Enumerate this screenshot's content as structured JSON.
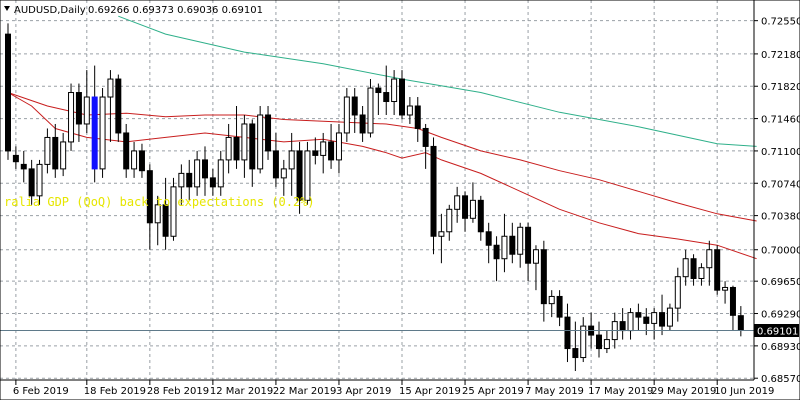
{
  "chart_data": {
    "type": "candlestick",
    "symbol_timeframe": "AUDUSD,Daily",
    "ohlc_header": "0.69266 0.69373 0.69036 0.69101",
    "current_price_label": "0.69101",
    "current_price": 0.69101,
    "annotation": "ralia GDP (QoQ) back to expectations (0.2%)",
    "ylim": [
      0.6855,
      0.7278
    ],
    "y_ticks": [
      "0.72550",
      "0.72180",
      "0.71820",
      "0.71460",
      "0.71100",
      "0.70740",
      "0.70380",
      "0.70000",
      "0.69650",
      "0.69290",
      "0.68930",
      "0.68570"
    ],
    "x_tick_labels": [
      {
        "label": "6 Feb 2019",
        "bar": 1
      },
      {
        "label": "18 Feb 2019",
        "bar": 10
      },
      {
        "label": "28 Feb 2019",
        "bar": 18
      },
      {
        "label": "12 Mar 2019",
        "bar": 26
      },
      {
        "label": "22 Mar 2019",
        "bar": 34
      },
      {
        "label": "3 Apr 2019",
        "bar": 42
      },
      {
        "label": "15 Apr 2019",
        "bar": 50
      },
      {
        "label": "25 Apr 2019",
        "bar": 58
      },
      {
        "label": "7 May 2019",
        "bar": 66
      },
      {
        "label": "17 May 2019",
        "bar": 74
      },
      {
        "label": "29 May 2019",
        "bar": 82
      },
      {
        "label": "10 Jun 2019",
        "bar": 90
      }
    ],
    "candles": [
      [
        0.724,
        0.7252,
        0.71,
        0.711
      ],
      [
        0.7105,
        0.7115,
        0.709,
        0.7098
      ],
      [
        0.7095,
        0.711,
        0.7075,
        0.709
      ],
      [
        0.709,
        0.71,
        0.705,
        0.706
      ],
      [
        0.706,
        0.71,
        0.705,
        0.7095
      ],
      [
        0.7095,
        0.7135,
        0.7085,
        0.7125
      ],
      [
        0.7125,
        0.714,
        0.708,
        0.709
      ],
      [
        0.709,
        0.713,
        0.7082,
        0.712
      ],
      [
        0.712,
        0.7185,
        0.711,
        0.7175
      ],
      [
        0.7175,
        0.7185,
        0.712,
        0.714
      ],
      [
        0.714,
        0.72,
        0.713,
        0.717
      ],
      [
        0.717,
        0.7205,
        0.7075,
        0.709
      ],
      [
        0.709,
        0.718,
        0.708,
        0.717
      ],
      [
        0.717,
        0.72,
        0.712,
        0.719
      ],
      [
        0.719,
        0.7195,
        0.712,
        0.713
      ],
      [
        0.713,
        0.714,
        0.708,
        0.709
      ],
      [
        0.709,
        0.712,
        0.708,
        0.711
      ],
      [
        0.711,
        0.7118,
        0.708,
        0.7088
      ],
      [
        0.7088,
        0.7095,
        0.7,
        0.703
      ],
      [
        0.703,
        0.706,
        0.7005,
        0.705
      ],
      [
        0.705,
        0.708,
        0.7,
        0.7015
      ],
      [
        0.7015,
        0.708,
        0.701,
        0.707
      ],
      [
        0.707,
        0.7095,
        0.705,
        0.7085
      ],
      [
        0.7085,
        0.71,
        0.7055,
        0.707
      ],
      [
        0.707,
        0.711,
        0.706,
        0.71
      ],
      [
        0.71,
        0.7115,
        0.706,
        0.708
      ],
      [
        0.708,
        0.709,
        0.706,
        0.707
      ],
      [
        0.707,
        0.711,
        0.706,
        0.71
      ],
      [
        0.71,
        0.714,
        0.7085,
        0.7125
      ],
      [
        0.7125,
        0.716,
        0.709,
        0.71
      ],
      [
        0.71,
        0.715,
        0.708,
        0.714
      ],
      [
        0.714,
        0.7145,
        0.707,
        0.709
      ],
      [
        0.709,
        0.716,
        0.7085,
        0.715
      ],
      [
        0.715,
        0.716,
        0.71,
        0.711
      ],
      [
        0.711,
        0.713,
        0.707,
        0.708
      ],
      [
        0.708,
        0.71,
        0.706,
        0.709
      ],
      [
        0.709,
        0.713,
        0.706,
        0.711
      ],
      [
        0.711,
        0.712,
        0.704,
        0.7055
      ],
      [
        0.7055,
        0.712,
        0.705,
        0.711
      ],
      [
        0.711,
        0.7125,
        0.7095,
        0.7105
      ],
      [
        0.7105,
        0.713,
        0.7085,
        0.712
      ],
      [
        0.712,
        0.714,
        0.709,
        0.71
      ],
      [
        0.71,
        0.714,
        0.7085,
        0.713
      ],
      [
        0.713,
        0.718,
        0.712,
        0.717
      ],
      [
        0.717,
        0.718,
        0.713,
        0.715
      ],
      [
        0.715,
        0.716,
        0.712,
        0.713
      ],
      [
        0.713,
        0.719,
        0.7125,
        0.718
      ],
      [
        0.718,
        0.7185,
        0.715,
        0.7175
      ],
      [
        0.7175,
        0.7205,
        0.715,
        0.7165
      ],
      [
        0.7165,
        0.72,
        0.715,
        0.719
      ],
      [
        0.719,
        0.72,
        0.7145,
        0.715
      ],
      [
        0.715,
        0.717,
        0.714,
        0.716
      ],
      [
        0.716,
        0.717,
        0.712,
        0.7135
      ],
      [
        0.7135,
        0.714,
        0.709,
        0.7115
      ],
      [
        0.7115,
        0.7125,
        0.6995,
        0.7015
      ],
      [
        0.7015,
        0.704,
        0.6985,
        0.702
      ],
      [
        0.702,
        0.705,
        0.701,
        0.7045
      ],
      [
        0.7045,
        0.707,
        0.703,
        0.706
      ],
      [
        0.706,
        0.7065,
        0.702,
        0.7035
      ],
      [
        0.7035,
        0.7075,
        0.703,
        0.7055
      ],
      [
        0.7055,
        0.706,
        0.701,
        0.702
      ],
      [
        0.702,
        0.703,
        0.6985,
        0.7005
      ],
      [
        0.7005,
        0.7015,
        0.6965,
        0.699
      ],
      [
        0.699,
        0.704,
        0.6975,
        0.7015
      ],
      [
        0.7015,
        0.703,
        0.6985,
        0.6995
      ],
      [
        0.6995,
        0.703,
        0.698,
        0.7025
      ],
      [
        0.7025,
        0.703,
        0.6965,
        0.6985
      ],
      [
        0.6985,
        0.7005,
        0.6955,
        0.7
      ],
      [
        0.7,
        0.701,
        0.692,
        0.694
      ],
      [
        0.694,
        0.6955,
        0.6925,
        0.6948
      ],
      [
        0.6948,
        0.6955,
        0.6915,
        0.6925
      ],
      [
        0.6925,
        0.694,
        0.6875,
        0.689
      ],
      [
        0.689,
        0.692,
        0.6865,
        0.688
      ],
      [
        0.688,
        0.6925,
        0.6875,
        0.6915
      ],
      [
        0.6915,
        0.693,
        0.689,
        0.6905
      ],
      [
        0.6905,
        0.692,
        0.688,
        0.689
      ],
      [
        0.689,
        0.691,
        0.6885,
        0.69
      ],
      [
        0.69,
        0.693,
        0.689,
        0.692
      ],
      [
        0.692,
        0.6935,
        0.69,
        0.691
      ],
      [
        0.691,
        0.6935,
        0.69,
        0.693
      ],
      [
        0.693,
        0.694,
        0.691,
        0.6925
      ],
      [
        0.6925,
        0.6935,
        0.6905,
        0.6918
      ],
      [
        0.6918,
        0.6935,
        0.69,
        0.693
      ],
      [
        0.693,
        0.695,
        0.6905,
        0.6915
      ],
      [
        0.6915,
        0.694,
        0.691,
        0.6935
      ],
      [
        0.6935,
        0.698,
        0.692,
        0.697
      ],
      [
        0.697,
        0.7,
        0.696,
        0.699
      ],
      [
        0.699,
        0.6995,
        0.696,
        0.6968
      ],
      [
        0.6968,
        0.6985,
        0.696,
        0.698
      ],
      [
        0.698,
        0.701,
        0.696,
        0.7
      ],
      [
        0.7,
        0.7005,
        0.695,
        0.6955
      ],
      [
        0.6955,
        0.6965,
        0.694,
        0.6958
      ],
      [
        0.6958,
        0.696,
        0.691,
        0.6927
      ],
      [
        0.69266,
        0.69373,
        0.69036,
        0.69101
      ]
    ],
    "highlight_candle": {
      "bar": 11,
      "color": "#1010ff"
    },
    "moving_averages": [
      {
        "color": "#2fb08a",
        "points": [
          [
            14,
            0.726
          ],
          [
            20,
            0.724
          ],
          [
            30,
            0.722
          ],
          [
            40,
            0.7207
          ],
          [
            50,
            0.719
          ],
          [
            60,
            0.7175
          ],
          [
            70,
            0.7153
          ],
          [
            80,
            0.7137
          ],
          [
            90,
            0.7118
          ],
          [
            95,
            0.7115
          ]
        ]
      },
      {
        "color": "#c81e1e",
        "points": [
          [
            0,
            0.7175
          ],
          [
            5,
            0.716
          ],
          [
            10,
            0.715
          ],
          [
            15,
            0.7152
          ],
          [
            20,
            0.7148
          ],
          [
            25,
            0.715
          ],
          [
            30,
            0.715
          ],
          [
            35,
            0.7145
          ],
          [
            40,
            0.7143
          ],
          [
            48,
            0.714
          ],
          [
            52,
            0.7135
          ],
          [
            55,
            0.7125
          ],
          [
            60,
            0.711
          ],
          [
            65,
            0.71
          ],
          [
            70,
            0.7088
          ],
          [
            75,
            0.7078
          ],
          [
            80,
            0.7065
          ],
          [
            85,
            0.7052
          ],
          [
            90,
            0.704
          ],
          [
            95,
            0.7032
          ]
        ]
      },
      {
        "color": "#c81e1e",
        "points": [
          [
            0,
            0.7175
          ],
          [
            3,
            0.716
          ],
          [
            6,
            0.7135
          ],
          [
            10,
            0.7125
          ],
          [
            15,
            0.712
          ],
          [
            20,
            0.7125
          ],
          [
            25,
            0.713
          ],
          [
            30,
            0.7125
          ],
          [
            35,
            0.712
          ],
          [
            40,
            0.7123
          ],
          [
            45,
            0.7115
          ],
          [
            48,
            0.7108
          ],
          [
            50,
            0.7102
          ],
          [
            53,
            0.7108
          ],
          [
            55,
            0.71
          ],
          [
            60,
            0.7085
          ],
          [
            65,
            0.7065
          ],
          [
            70,
            0.7045
          ],
          [
            75,
            0.703
          ],
          [
            80,
            0.7018
          ],
          [
            85,
            0.7012
          ],
          [
            90,
            0.7005
          ],
          [
            95,
            0.699
          ]
        ]
      }
    ]
  }
}
